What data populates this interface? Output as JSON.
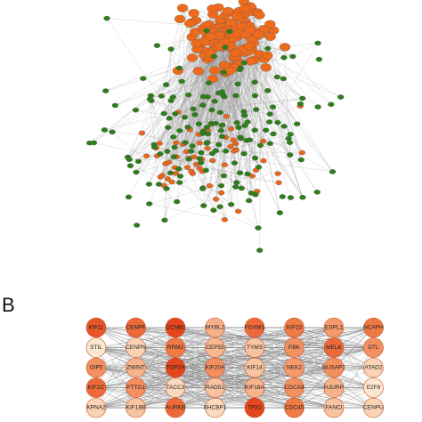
{
  "panel_label": "B",
  "grid": {
    "rows": [
      [
        {
          "label": "KIF11",
          "color": "#e8552a"
        },
        {
          "label": "CENPF",
          "color": "#ec6a3a"
        },
        {
          "label": "CCNB2",
          "color": "#e4461e"
        },
        {
          "label": "MYBL2",
          "color": "#f6b08a"
        },
        {
          "label": "FOXM1",
          "color": "#ec6a3a"
        },
        {
          "label": "KIF23",
          "color": "#ee7a45"
        },
        {
          "label": "ESPL1",
          "color": "#f59a6c"
        },
        {
          "label": "NCAPH",
          "color": "#ee7a45"
        }
      ],
      [
        {
          "label": "STIL",
          "color": "#fde6cf"
        },
        {
          "label": "CENPN",
          "color": "#fbd3b4"
        },
        {
          "label": "RRM2",
          "color": "#ee7a45"
        },
        {
          "label": "CEP55",
          "color": "#f7b890"
        },
        {
          "label": "TYMS",
          "color": "#f8c3a0"
        },
        {
          "label": "PBK",
          "color": "#f39060"
        },
        {
          "label": "MELK",
          "color": "#ec6a3a"
        },
        {
          "label": "DTL",
          "color": "#f39060"
        }
      ],
      [
        {
          "label": "OIP5",
          "color": "#f39060"
        },
        {
          "label": "ZWINT",
          "color": "#f7b48a"
        },
        {
          "label": "TOP2A",
          "color": "#e4461e"
        },
        {
          "label": "KIF20A",
          "color": "#f39060"
        },
        {
          "label": "KIF14",
          "color": "#f8c3a0"
        },
        {
          "label": "NEK2",
          "color": "#f59a6c"
        },
        {
          "label": "NUSAP1",
          "color": "#f39060"
        },
        {
          "label": "ATAD2",
          "color": "#fbd3b4"
        }
      ],
      [
        {
          "label": "KIF2C",
          "color": "#ec6a3a"
        },
        {
          "label": "PTTG1",
          "color": "#f39060"
        },
        {
          "label": "TACC3",
          "color": "#fbd9bd"
        },
        {
          "label": "RAD51",
          "color": "#f8c3a0"
        },
        {
          "label": "KIF18A",
          "color": "#f7b48a"
        },
        {
          "label": "CDCA8",
          "color": "#f39060"
        },
        {
          "label": "HJURP",
          "color": "#f7b48a"
        },
        {
          "label": "E2F8",
          "color": "#fde6cf"
        }
      ],
      [
        {
          "label": "KPNA2",
          "color": "#fbd3b4"
        },
        {
          "label": "KIF18B",
          "color": "#f8c3a0"
        },
        {
          "label": "AURKB",
          "color": "#ec6a3a"
        },
        {
          "label": "SHCBP1",
          "color": "#fbd9bd"
        },
        {
          "label": "TPX2",
          "color": "#e4461e"
        },
        {
          "label": "CDC45",
          "color": "#ee7a45"
        },
        {
          "label": "FANCI",
          "color": "#f8c3a0"
        },
        {
          "label": "CENPU",
          "color": "#fbd3b4"
        }
      ]
    ]
  }
}
